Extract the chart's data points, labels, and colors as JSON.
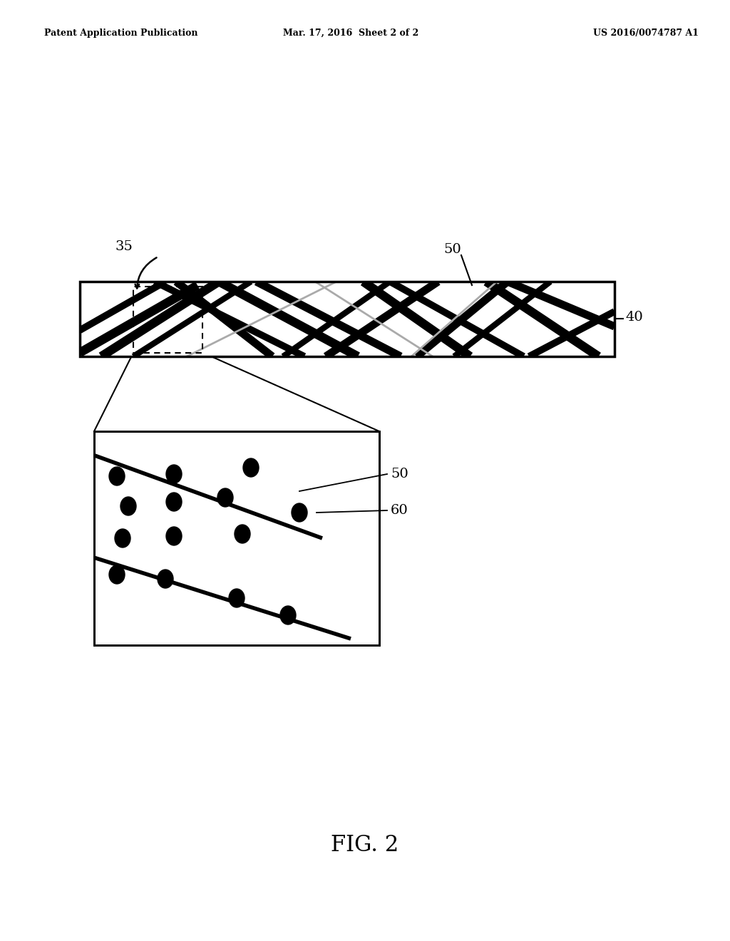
{
  "background_color": "#ffffff",
  "header_left": "Patent Application Publication",
  "header_mid": "Mar. 17, 2016  Sheet 2 of 2",
  "header_right": "US 2016/0074787 A1",
  "figure_label": "FIG. 2",
  "label_35": "35",
  "label_40": "40",
  "label_50": "50",
  "label_60": "60"
}
